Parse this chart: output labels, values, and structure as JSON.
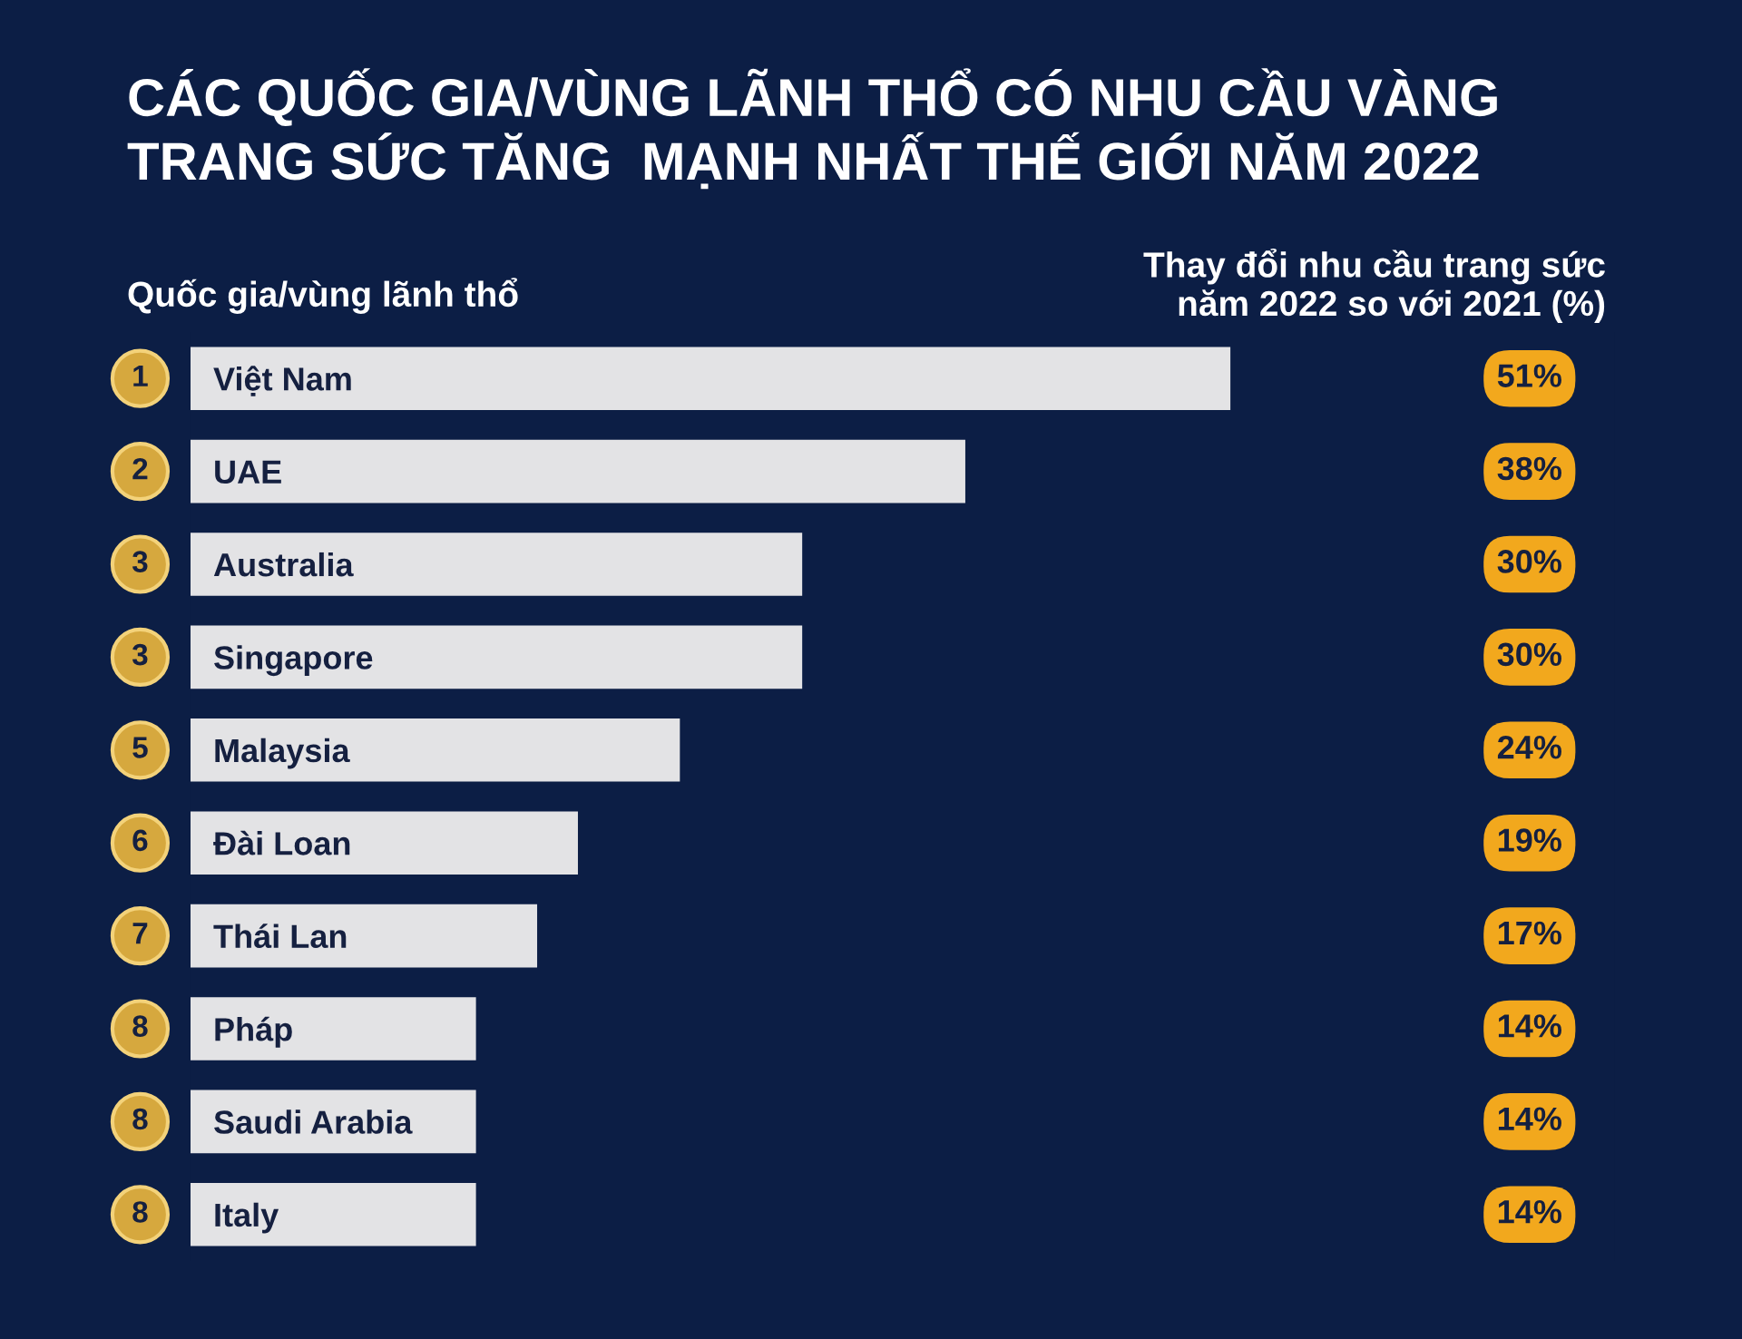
{
  "chart_data": {
    "type": "bar",
    "orientation": "horizontal",
    "title": "CÁC QUỐC GIA/VÙNG LÃNH THỔ CÓ NHU CẦU VÀNG\nTRANG SỨC TĂNG  MẠNH NHẤT THẾ GIỚI NĂM 2022",
    "ylabel": "Quốc gia/vùng lãnh thổ",
    "xlabel": "Thay đổi nhu cầu trang sức\nnăm 2022 so với 2021 (%)",
    "categories": [
      "Việt Nam",
      "UAE",
      "Australia",
      "Singapore",
      "Malaysia",
      "Đài Loan",
      "Thái Lan",
      "Pháp",
      "Saudi Arabia",
      "Italy"
    ],
    "values": [
      51,
      38,
      30,
      30,
      24,
      19,
      17,
      14,
      14,
      14
    ],
    "value_labels": [
      "51%",
      "38%",
      "30%",
      "30%",
      "24%",
      "19%",
      "17%",
      "14%",
      "14%",
      "14%"
    ],
    "color": "#e3e3e5",
    "tick_labels": "y",
    "grid": false,
    "legend": false,
    "annotations": [
      "1",
      "2",
      "3",
      "3",
      "5",
      "6",
      "7",
      "8",
      "8",
      "8"
    ]
  }
}
